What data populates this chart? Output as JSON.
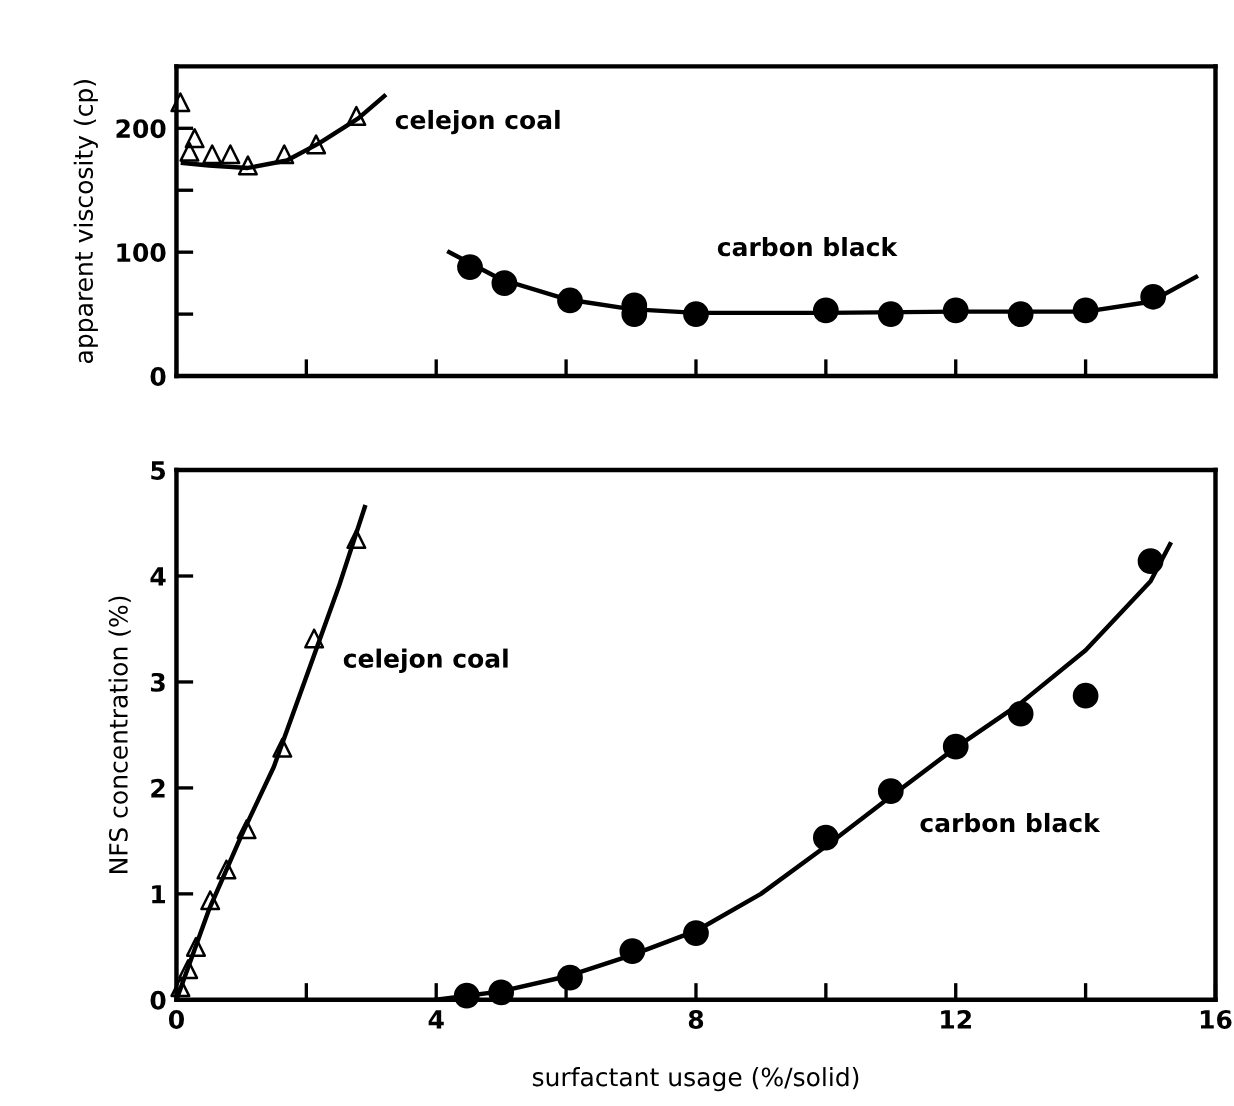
{
  "chart_data": [
    {
      "type": "scatter",
      "ylabel": "apparent viscosity (cp)",
      "xlim": [
        0,
        16
      ],
      "ylim": [
        0,
        250
      ],
      "xticks": [
        0,
        {
          "value": 2,
          "label": null
        },
        4,
        {
          "value": 6,
          "label": null
        },
        8,
        {
          "value": 10,
          "label": null
        },
        12,
        {
          "value": 14,
          "label": null
        },
        16
      ],
      "yticks": [
        0,
        {
          "value": 50,
          "label": null
        },
        100,
        {
          "value": 150,
          "label": null
        },
        200
      ],
      "tick_labels": "y",
      "grid": false,
      "legend": false,
      "annotations": [
        "celejon coal",
        "carbon black"
      ],
      "series": [
        {
          "marker": "triangle",
          "color": "#000000",
          "x": [
            0.06,
            0.2,
            0.28,
            0.55,
            0.83,
            1.1,
            1.66,
            2.15,
            2.77
          ],
          "values": [
            221,
            181,
            192,
            179,
            179,
            170,
            179,
            187,
            210
          ]
        },
        {
          "marker": "circle",
          "color": "#000000",
          "x": [
            4.52,
            5.05,
            6.06,
            7.05,
            7.05,
            8.0,
            10,
            11,
            12,
            13,
            14,
            15.04
          ],
          "values": [
            88,
            75,
            61,
            57,
            50,
            50,
            53,
            50,
            53,
            50,
            53,
            64
          ]
        },
        {
          "type": "line",
          "marker": "none",
          "color": "#000000",
          "x": [
            0.1,
            0.5,
            1.1,
            1.7,
            2.2,
            2.8,
            3.2
          ],
          "values": [
            172,
            170,
            168,
            174,
            188,
            208,
            226
          ]
        },
        {
          "type": "line",
          "marker": "none",
          "color": "#000000",
          "x": [
            4.2,
            5,
            6,
            7,
            8,
            10,
            12,
            14,
            15,
            15.7
          ],
          "values": [
            100,
            78,
            62,
            54,
            51,
            51,
            52,
            52,
            60,
            80
          ]
        }
      ]
    },
    {
      "type": "scatter",
      "xlabel": "surfactant usage (%/solid)",
      "ylabel": "NFS concentration (%)",
      "xlim": [
        0,
        16
      ],
      "ylim": [
        0,
        5
      ],
      "xticks": [
        0,
        {
          "value": 2,
          "label": null
        },
        4,
        {
          "value": 6,
          "label": null
        },
        8,
        {
          "value": 10,
          "label": null
        },
        12,
        {
          "value": 14,
          "label": null
        },
        16
      ],
      "yticks": [
        0,
        1,
        2,
        3,
        4,
        5
      ],
      "grid": false,
      "legend": false,
      "annotations": [
        "celejon coal",
        "carbon black"
      ],
      "series": [
        {
          "marker": "triangle",
          "color": "#000000",
          "x": [
            0.06,
            0.18,
            0.3,
            0.52,
            0.77,
            1.08,
            1.63,
            2.12,
            2.77
          ],
          "values": [
            0.12,
            0.29,
            0.5,
            0.94,
            1.23,
            1.61,
            2.38,
            3.41,
            4.35
          ]
        },
        {
          "marker": "circle",
          "color": "#000000",
          "x": [
            4.47,
            5.0,
            6.06,
            7.02,
            8.0,
            10,
            11,
            12,
            13,
            14,
            15
          ],
          "values": [
            0.04,
            0.07,
            0.21,
            0.46,
            0.63,
            1.53,
            1.97,
            2.39,
            2.7,
            2.87,
            4.14
          ]
        },
        {
          "type": "line",
          "marker": "none",
          "color": "#000000",
          "x": [
            0,
            0.5,
            1,
            1.5,
            2,
            2.5,
            2.9
          ],
          "values": [
            0,
            0.85,
            1.55,
            2.2,
            3.05,
            3.9,
            4.65
          ]
        },
        {
          "type": "line",
          "marker": "none",
          "color": "#000000",
          "x": [
            4,
            5,
            6,
            7,
            8,
            9,
            10,
            11,
            12,
            13,
            14,
            15,
            15.3
          ],
          "values": [
            0,
            0.08,
            0.22,
            0.42,
            0.65,
            1.0,
            1.45,
            1.92,
            2.38,
            2.8,
            3.3,
            3.95,
            4.3
          ]
        }
      ]
    }
  ]
}
